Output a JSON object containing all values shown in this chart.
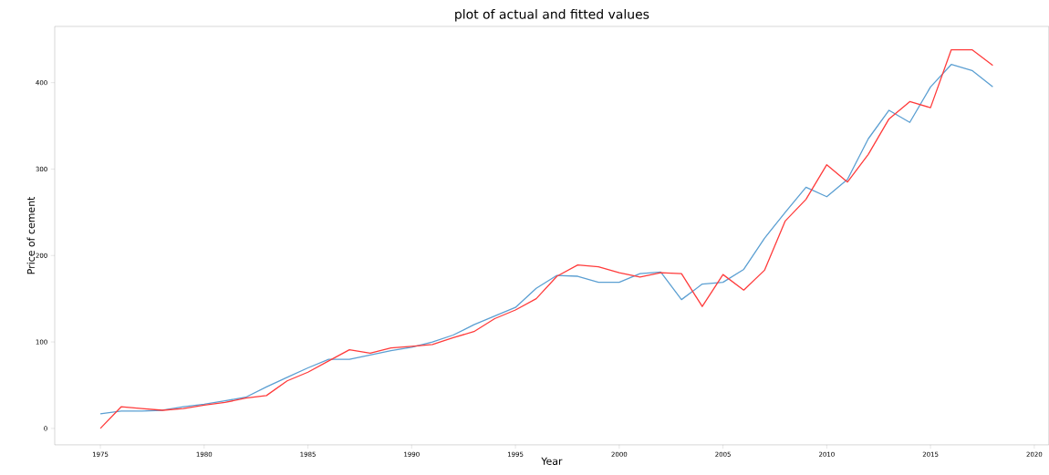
{
  "chart_data": {
    "type": "line",
    "title": "plot of actual and fitted values",
    "xlabel": "Year",
    "ylabel": "Price of cement",
    "x": [
      1975,
      1976,
      1977,
      1978,
      1979,
      1980,
      1981,
      1982,
      1983,
      1984,
      1985,
      1986,
      1987,
      1988,
      1989,
      1990,
      1991,
      1992,
      1993,
      1994,
      1995,
      1996,
      1997,
      1998,
      1999,
      2000,
      2001,
      2002,
      2003,
      2004,
      2005,
      2006,
      2007,
      2008,
      2009,
      2010,
      2011,
      2012,
      2013,
      2014,
      2015,
      2016,
      2017,
      2018
    ],
    "series": [
      {
        "color": "#5b9fd2",
        "values": [
          17,
          20,
          20,
          21,
          25,
          28,
          32,
          36,
          48,
          59,
          70,
          80,
          80,
          85,
          90,
          94,
          100,
          108,
          120,
          130,
          140,
          162,
          177,
          176,
          169,
          169,
          179,
          181,
          149,
          167,
          169,
          184,
          220,
          250,
          279,
          268,
          288,
          335,
          368,
          354,
          395,
          421,
          414,
          395
        ]
      },
      {
        "color": "#ff3b3b",
        "values": [
          0,
          25,
          23,
          21,
          23,
          27,
          30,
          35,
          38,
          55,
          65,
          78,
          91,
          87,
          93,
          95,
          97,
          105,
          112,
          127,
          137,
          150,
          176,
          189,
          187,
          180,
          175,
          180,
          179,
          141,
          178,
          160,
          183,
          240,
          265,
          305,
          285,
          317,
          358,
          378,
          371,
          438,
          438,
          420
        ]
      }
    ],
    "xlim": [
      1972.8,
      2020.7
    ],
    "ylim": [
      -19,
      465
    ],
    "xticks": [
      1975,
      1980,
      1985,
      1990,
      1995,
      2000,
      2005,
      2010,
      2015,
      2020
    ],
    "yticks": [
      0,
      100,
      200,
      300,
      400
    ],
    "grid": false,
    "line_style": "solid",
    "marker": "none"
  }
}
